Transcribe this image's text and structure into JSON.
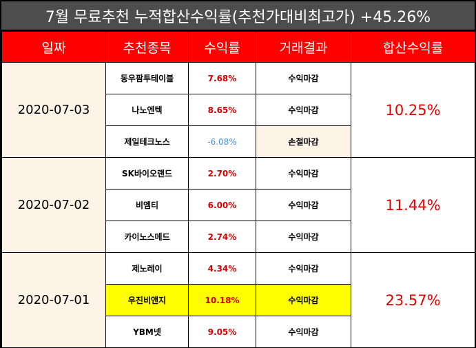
{
  "title": "7월 무료추천 누적합산수익률(추천가대비최고가) +45.26%",
  "headers": {
    "date": "일짜",
    "stock": "추천종목",
    "return": "수익률",
    "result": "거래결과",
    "total": "합산수익률"
  },
  "groups": [
    {
      "date": "2020-07-03",
      "total": "10.25%",
      "rows": [
        {
          "stock": "동우팜투테이블",
          "return": "7.68%",
          "result": "수익마감"
        },
        {
          "stock": "나노엔텍",
          "return": "8.65%",
          "result": "수익마감"
        },
        {
          "stock": "제일테크노스",
          "return": "-6.08%",
          "result": "손절마감"
        }
      ]
    },
    {
      "date": "2020-07-02",
      "total": "11.44%",
      "rows": [
        {
          "stock": "SK바이오랜드",
          "return": "2.70%",
          "result": "수익마감"
        },
        {
          "stock": "비엠티",
          "return": "6.00%",
          "result": "수익마감"
        },
        {
          "stock": "카이노스메드",
          "return": "2.74%",
          "result": "수익마감"
        }
      ]
    },
    {
      "date": "2020-07-01",
      "total": "23.57%",
      "rows": [
        {
          "stock": "제노레이",
          "return": "4.34%",
          "result": "수익마감"
        },
        {
          "stock": "우진비앤지",
          "return": "10.18%",
          "result": "수익마감"
        },
        {
          "stock": "YBM넷",
          "return": "9.05%",
          "result": "수익마감"
        }
      ]
    }
  ],
  "colors": {
    "header_bg": "#ff0000",
    "title_bg": "#4d4d4d",
    "positive": "#d00000",
    "negative": "#4a90d9",
    "highlight": "#ffff00"
  }
}
